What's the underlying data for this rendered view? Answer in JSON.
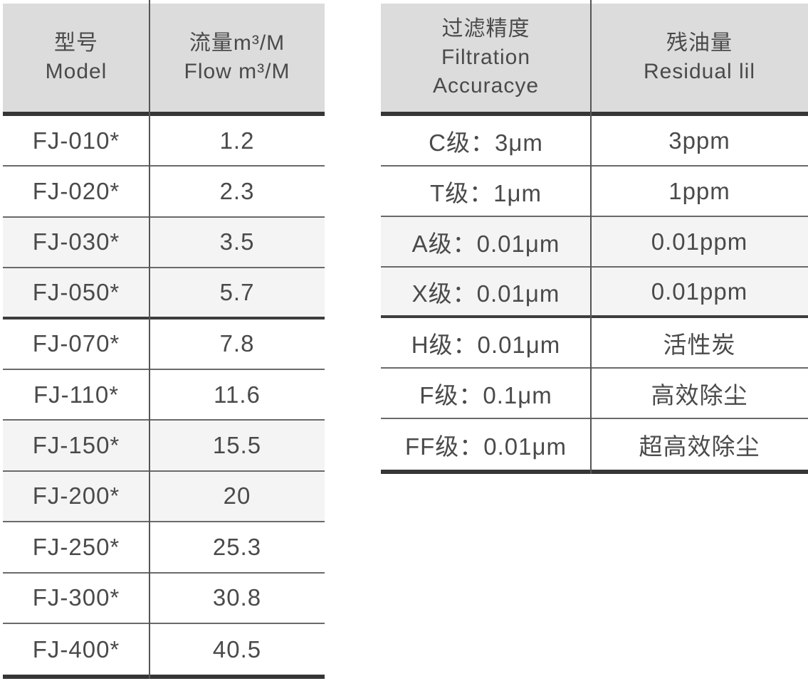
{
  "colors": {
    "header_bg": "#dcdcdc",
    "shaded_row_bg": "#f4f4f4",
    "text": "#4a4a4a",
    "thin_line": "#6a6a6a",
    "thick_line": "#3d3d3d",
    "bar": "#363636",
    "divider": "#555555"
  },
  "tables": {
    "model_flow": {
      "header": {
        "col1_zh": "型号",
        "col1_en": "Model",
        "col2_zh": "流量m³/M",
        "col2_en": "Flow m³/M"
      },
      "rows": [
        {
          "model": "FJ-010*",
          "flow": "1.2",
          "shaded": false,
          "thick_bottom": false
        },
        {
          "model": "FJ-020*",
          "flow": "2.3",
          "shaded": false,
          "thick_bottom": false
        },
        {
          "model": "FJ-030*",
          "flow": "3.5",
          "shaded": true,
          "thick_bottom": false
        },
        {
          "model": "FJ-050*",
          "flow": "5.7",
          "shaded": true,
          "thick_bottom": true
        },
        {
          "model": "FJ-070*",
          "flow": "7.8",
          "shaded": false,
          "thick_bottom": false
        },
        {
          "model": "FJ-110*",
          "flow": "11.6",
          "shaded": false,
          "thick_bottom": false
        },
        {
          "model": "FJ-150*",
          "flow": "15.5",
          "shaded": true,
          "thick_bottom": false
        },
        {
          "model": "FJ-200*",
          "flow": "20",
          "shaded": true,
          "thick_bottom": false
        },
        {
          "model": "FJ-250*",
          "flow": "25.3",
          "shaded": false,
          "thick_bottom": false
        },
        {
          "model": "FJ-300*",
          "flow": "30.8",
          "shaded": false,
          "thick_bottom": false
        },
        {
          "model": "FJ-400*",
          "flow": "40.5",
          "shaded": false,
          "thick_bottom": false
        }
      ]
    },
    "filtration": {
      "header": {
        "col1_zh": "过滤精度",
        "col1_en_line1": "Filtration",
        "col1_en_line2": "Accuracye",
        "col2_zh": "残油量",
        "col2_en": "Residual lil"
      },
      "rows": [
        {
          "grade": "C级：3μm",
          "residual": "3ppm",
          "shaded": false,
          "thick_bottom": false
        },
        {
          "grade": "T级：1μm",
          "residual": "1ppm",
          "shaded": false,
          "thick_bottom": false
        },
        {
          "grade": "A级：0.01μm",
          "residual": "0.01ppm",
          "shaded": true,
          "thick_bottom": false
        },
        {
          "grade": "X级：0.01μm",
          "residual": "0.01ppm",
          "shaded": true,
          "thick_bottom": true
        },
        {
          "grade": "H级：0.01μm",
          "residual": "活性炭",
          "shaded": false,
          "thick_bottom": false
        },
        {
          "grade": "F级：0.1μm",
          "residual": "高效除尘",
          "shaded": false,
          "thick_bottom": false
        },
        {
          "grade": "FF级：0.01μm",
          "residual": "超高效除尘",
          "shaded": false,
          "thick_bottom": false
        }
      ]
    }
  }
}
